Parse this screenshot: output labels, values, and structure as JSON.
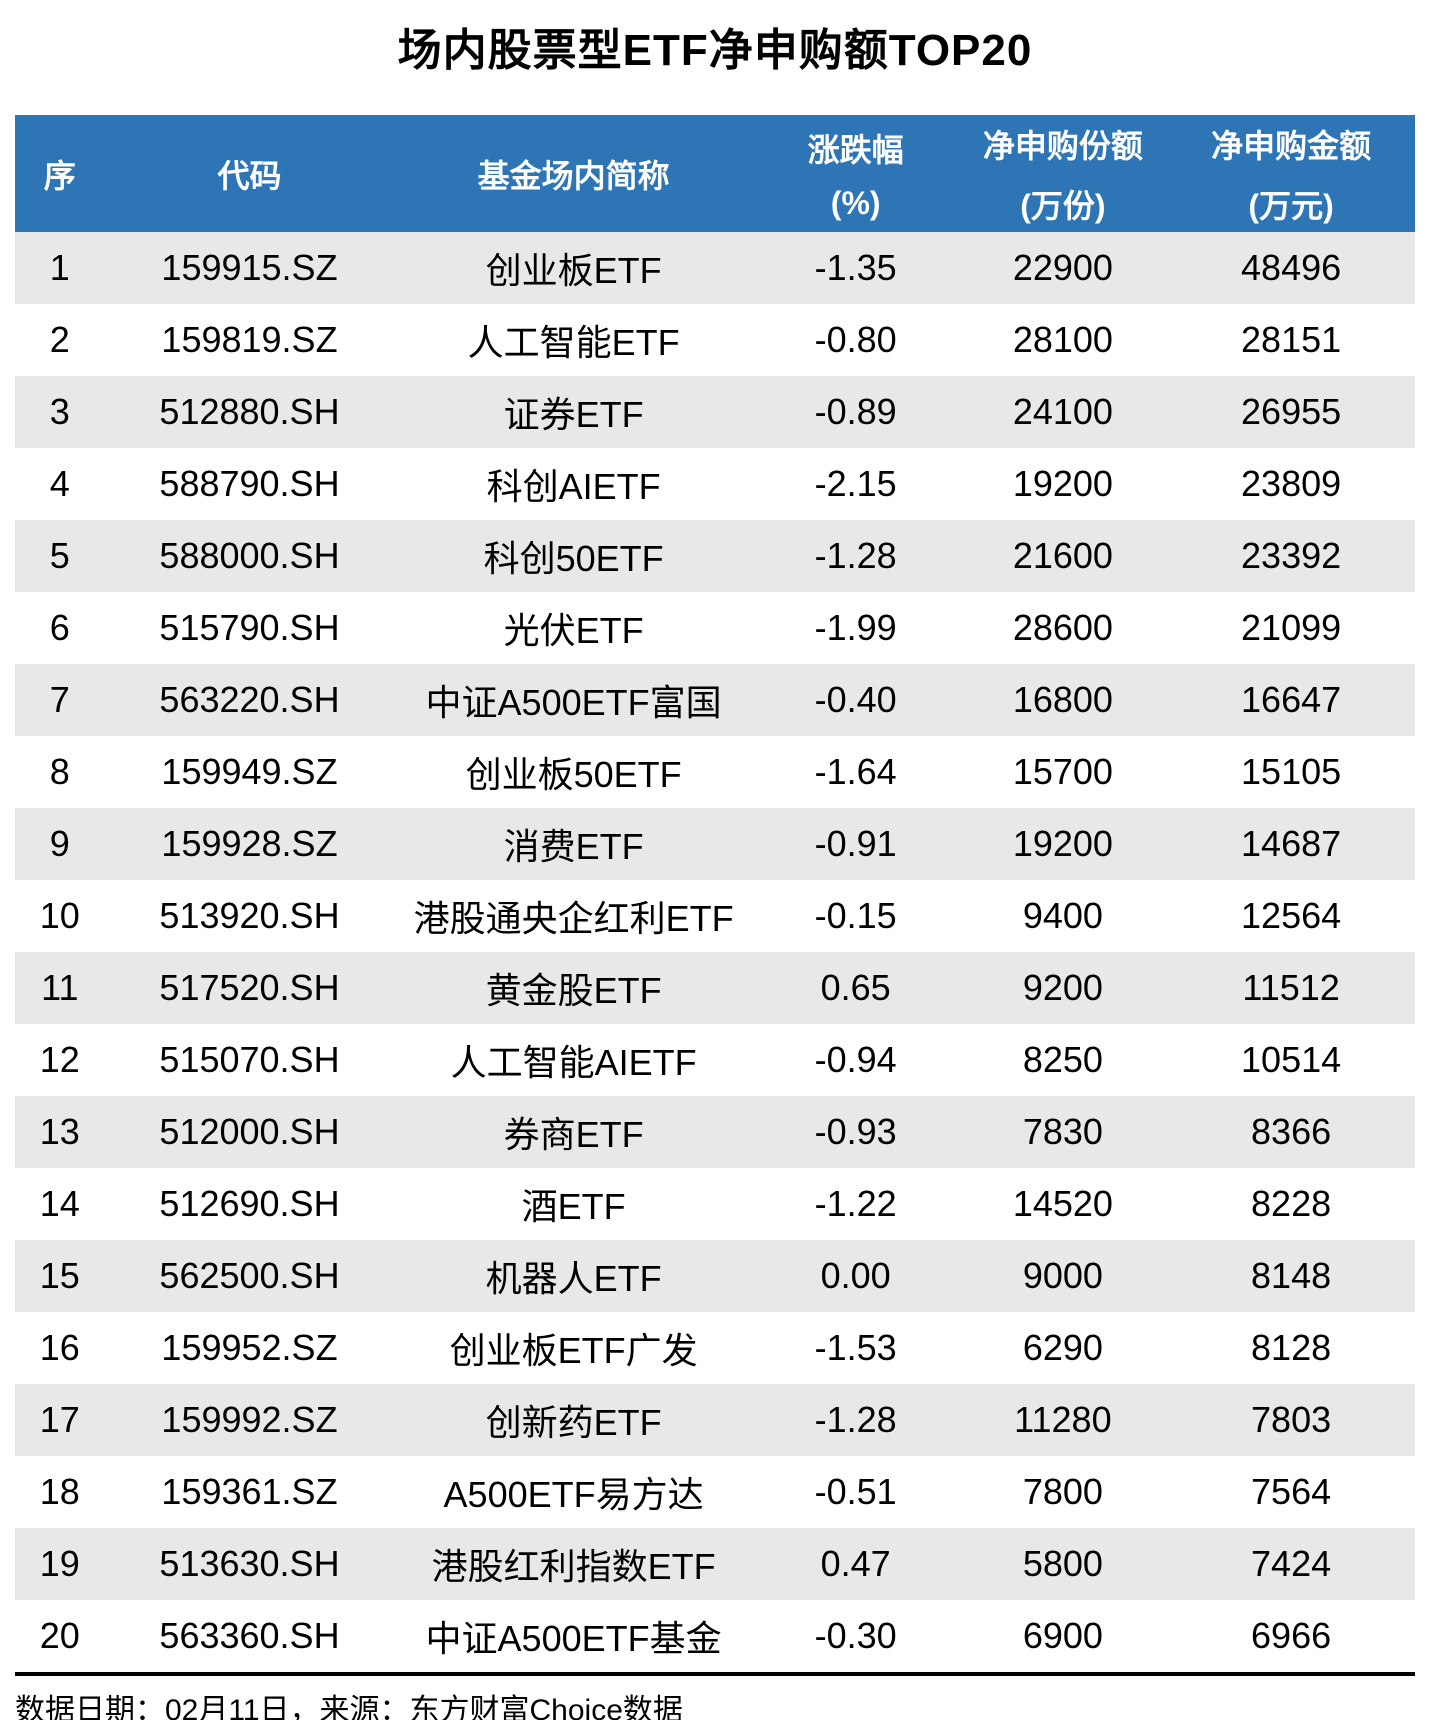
{
  "title": "场内股票型ETF净申购额TOP20",
  "footer": {
    "note": "数据日期：02月11日，来源：东方财富Choice数据"
  },
  "colors": {
    "header_bg": "#2E75B6",
    "header_text": "#FFFFFF",
    "row_alt_bg": "#E8E8E8",
    "row_bg": "#FFFFFF",
    "text": "#000000",
    "divider": "#000000"
  },
  "chart_data": {
    "type": "table",
    "title": "场内股票型ETF净申购额TOP20",
    "col_keys": [
      "seq",
      "code",
      "name",
      "change_pct",
      "net_subscription_shares_wan",
      "net_subscription_amount_wan"
    ],
    "columns": [
      {
        "label": "序",
        "unit": ""
      },
      {
        "label": "代码",
        "unit": ""
      },
      {
        "label": "基金场内简称",
        "unit": ""
      },
      {
        "label": "涨跌幅",
        "unit": "(%)"
      },
      {
        "label": "净申购份额",
        "unit": "(万份)"
      },
      {
        "label": "净申购金额",
        "unit": "(万元)"
      }
    ],
    "rows": [
      [
        "1",
        "159915.SZ",
        "创业板ETF",
        "-1.35",
        "22900",
        "48496"
      ],
      [
        "2",
        "159819.SZ",
        "人工智能ETF",
        "-0.80",
        "28100",
        "28151"
      ],
      [
        "3",
        "512880.SH",
        "证券ETF",
        "-0.89",
        "24100",
        "26955"
      ],
      [
        "4",
        "588790.SH",
        "科创AIETF",
        "-2.15",
        "19200",
        "23809"
      ],
      [
        "5",
        "588000.SH",
        "科创50ETF",
        "-1.28",
        "21600",
        "23392"
      ],
      [
        "6",
        "515790.SH",
        "光伏ETF",
        "-1.99",
        "28600",
        "21099"
      ],
      [
        "7",
        "563220.SH",
        "中证A500ETF富国",
        "-0.40",
        "16800",
        "16647"
      ],
      [
        "8",
        "159949.SZ",
        "创业板50ETF",
        "-1.64",
        "15700",
        "15105"
      ],
      [
        "9",
        "159928.SZ",
        "消费ETF",
        "-0.91",
        "19200",
        "14687"
      ],
      [
        "10",
        "513920.SH",
        "港股通央企红利ETF",
        "-0.15",
        "9400",
        "12564"
      ],
      [
        "11",
        "517520.SH",
        "黄金股ETF",
        "0.65",
        "9200",
        "11512"
      ],
      [
        "12",
        "515070.SH",
        "人工智能AIETF",
        "-0.94",
        "8250",
        "10514"
      ],
      [
        "13",
        "512000.SH",
        "券商ETF",
        "-0.93",
        "7830",
        "8366"
      ],
      [
        "14",
        "512690.SH",
        "酒ETF",
        "-1.22",
        "14520",
        "8228"
      ],
      [
        "15",
        "562500.SH",
        "机器人ETF",
        "0.00",
        "9000",
        "8148"
      ],
      [
        "16",
        "159952.SZ",
        "创业板ETF广发",
        "-1.53",
        "6290",
        "8128"
      ],
      [
        "17",
        "159992.SZ",
        "创新药ETF",
        "-1.28",
        "11280",
        "7803"
      ],
      [
        "18",
        "159361.SZ",
        "A500ETF易方达",
        "-0.51",
        "7800",
        "7564"
      ],
      [
        "19",
        "513630.SH",
        "港股红利指数ETF",
        "0.47",
        "5800",
        "7424"
      ],
      [
        "20",
        "563360.SH",
        "中证A500ETF基金",
        "-0.30",
        "6900",
        "6966"
      ]
    ],
    "column_widths_pct": [
      6.4,
      20.7,
      25.6,
      14.7,
      14.9,
      17.7
    ],
    "layout": {
      "striped": true,
      "stripe_rows": "odd",
      "grid": false
    }
  }
}
